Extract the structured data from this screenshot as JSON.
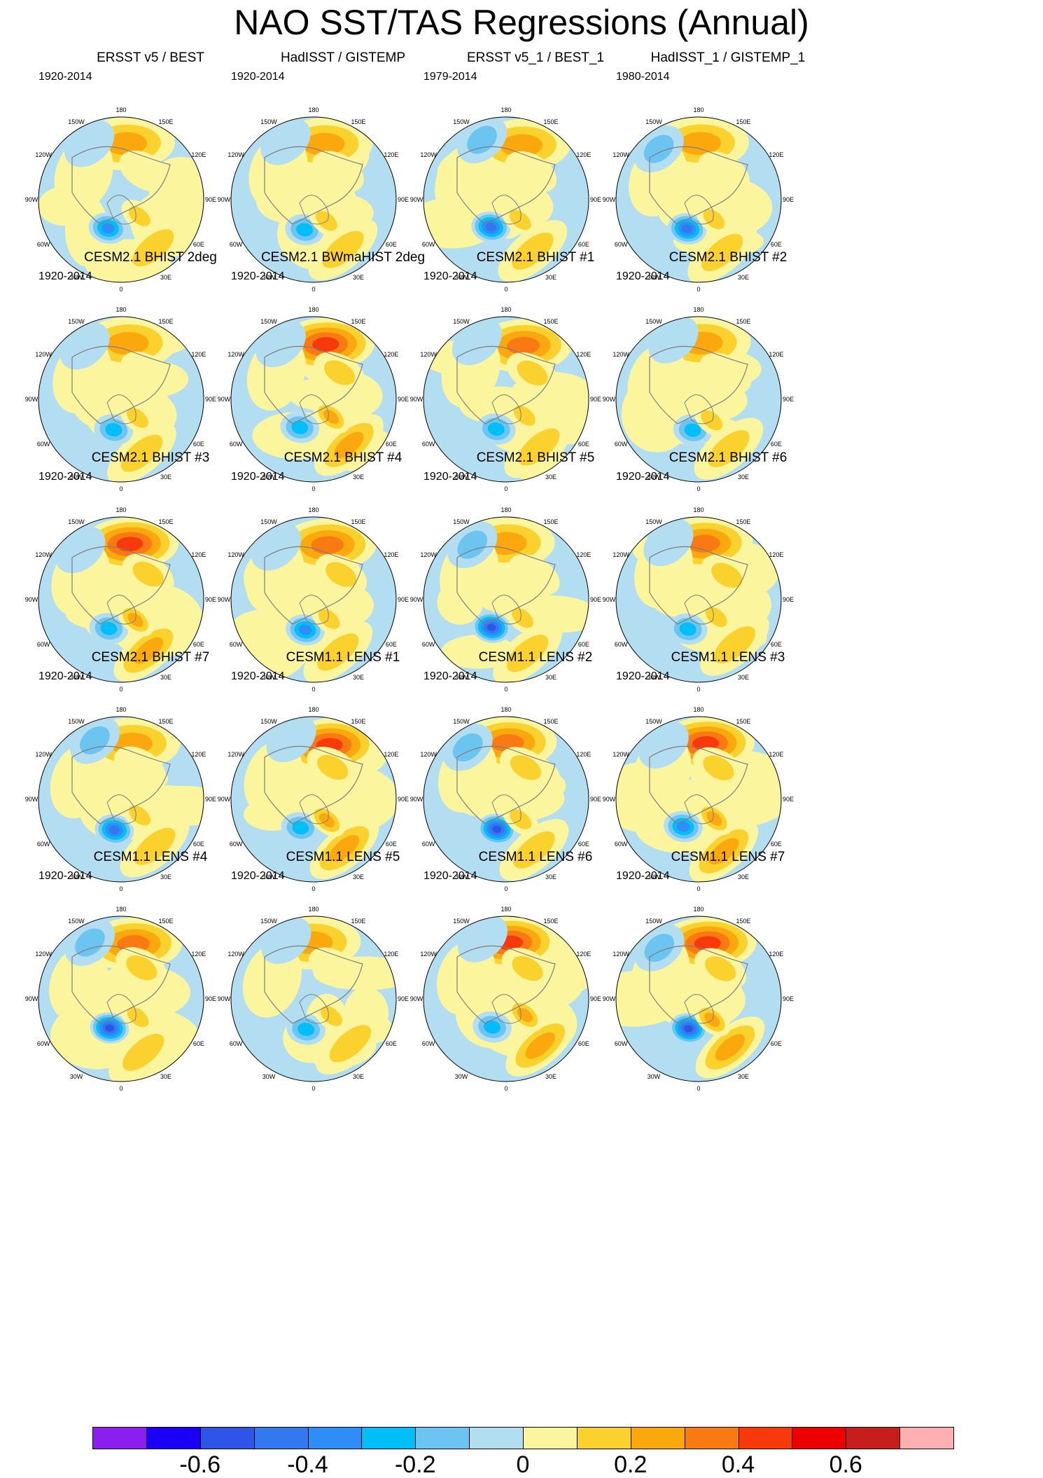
{
  "title": "NAO SST/TAS Regressions (Annual)",
  "longitude_labels": [
    "180",
    "150E",
    "120E",
    "90E",
    "60E",
    "30E",
    "0",
    "30W",
    "60W",
    "90W",
    "120W",
    "150W"
  ],
  "chart_data": {
    "type": "polar-contour-map",
    "variable": "NAO regression of SST/TAS (Annual)",
    "projection": "North polar stereographic",
    "rows": 5,
    "cols": 4,
    "panels": [
      {
        "title": "ERSST v5 / BEST",
        "period": "1920-2014",
        "max_pos": 0.3,
        "max_neg": -0.4
      },
      {
        "title": "HadISST / GISTEMP",
        "period": "1920-2014",
        "max_pos": 0.3,
        "max_neg": -0.3
      },
      {
        "title": "ERSST v5_1 / BEST_1",
        "period": "1979-2014",
        "max_pos": 0.3,
        "max_neg": -0.5
      },
      {
        "title": "HadISST_1 / GISTEMP_1",
        "period": "1980-2014",
        "max_pos": 0.3,
        "max_neg": -0.5
      },
      {
        "title": "CESM2.1 BHIST 2deg",
        "period": "1920-2014",
        "max_pos": 0.3,
        "max_neg": -0.3
      },
      {
        "title": "CESM2.1 BWmaHIST 2deg",
        "period": "1920-2014",
        "max_pos": 0.5,
        "max_neg": -0.3
      },
      {
        "title": "CESM2.1 BHIST #1",
        "period": "1920-2014",
        "max_pos": 0.4,
        "max_neg": -0.3
      },
      {
        "title": "CESM2.1 BHIST #2",
        "period": "1920-2014",
        "max_pos": 0.3,
        "max_neg": -0.3
      },
      {
        "title": "CESM2.1 BHIST #3",
        "period": "1920-2014",
        "max_pos": 0.5,
        "max_neg": -0.3
      },
      {
        "title": "CESM2.1 BHIST #4",
        "period": "1920-2014",
        "max_pos": 0.4,
        "max_neg": -0.4
      },
      {
        "title": "CESM2.1 BHIST #5",
        "period": "1920-2014",
        "max_pos": 0.3,
        "max_neg": -0.6
      },
      {
        "title": "CESM2.1 BHIST #6",
        "period": "1920-2014",
        "max_pos": 0.4,
        "max_neg": -0.3
      },
      {
        "title": "CESM2.1 BHIST #7",
        "period": "1920-2014",
        "max_pos": 0.3,
        "max_neg": -0.5
      },
      {
        "title": "CESM1.1 LENS #1",
        "period": "1920-2014",
        "max_pos": 0.5,
        "max_neg": -0.3
      },
      {
        "title": "CESM1.1 LENS #2",
        "period": "1920-2014",
        "max_pos": 0.4,
        "max_neg": -0.6
      },
      {
        "title": "CESM1.1 LENS #3",
        "period": "1920-2014",
        "max_pos": 0.5,
        "max_neg": -0.4
      },
      {
        "title": "CESM1.1 LENS #4",
        "period": "1920-2014",
        "max_pos": 0.4,
        "max_neg": -0.6
      },
      {
        "title": "CESM1.1 LENS #5",
        "period": "1920-2014",
        "max_pos": 0.3,
        "max_neg": -0.3
      },
      {
        "title": "CESM1.1 LENS #6",
        "period": "1920-2014",
        "max_pos": 0.5,
        "max_neg": -0.3
      },
      {
        "title": "CESM1.1 LENS #7",
        "period": "1920-2014",
        "max_pos": 0.5,
        "max_neg": -0.6
      }
    ],
    "colorbar": {
      "levels": [
        -0.7,
        -0.6,
        -0.5,
        -0.4,
        -0.3,
        -0.2,
        -0.1,
        0,
        0.1,
        0.2,
        0.3,
        0.4,
        0.5,
        0.6,
        0.7
      ],
      "colors": [
        "#8b1ff0",
        "#1a00f5",
        "#2e55e8",
        "#3378ee",
        "#2f8df7",
        "#00bff8",
        "#6cc5f0",
        "#b3def2",
        "#fbf59e",
        "#fbd12d",
        "#fba80f",
        "#f97a12",
        "#f7390c",
        "#ec0000",
        "#c61d1d",
        "#fcb0b0"
      ],
      "tick_labels": [
        "-0.6",
        "-0.4",
        "-0.2",
        "0",
        "0.2",
        "0.4",
        "0.6"
      ],
      "tick_values": [
        -0.6,
        -0.4,
        -0.2,
        0,
        0.2,
        0.4,
        0.6
      ]
    }
  }
}
